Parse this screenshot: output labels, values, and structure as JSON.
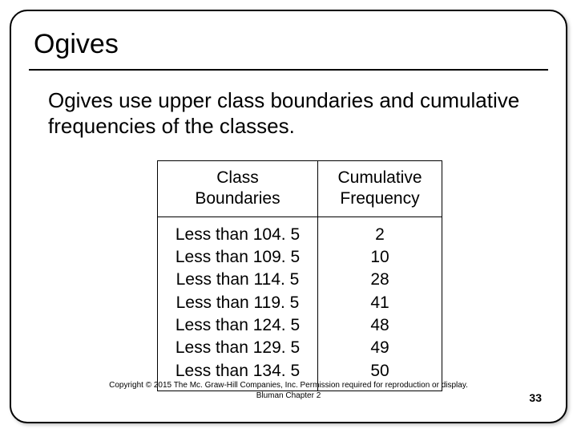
{
  "slide": {
    "title": "Ogives",
    "subtitle": "Ogives use upper class boundaries and cumulative frequencies of the classes."
  },
  "table": {
    "type": "table",
    "columns": [
      "Class Boundaries",
      "Cumulative Frequency"
    ],
    "boundaries": [
      "Less than 104. 5",
      "Less than 109. 5",
      "Less than 114. 5",
      "Less than 119. 5",
      "Less than 124. 5",
      "Less than 129. 5",
      "Less than 134. 5"
    ],
    "cumulative": [
      "2",
      "10",
      "28",
      "41",
      "48",
      "49",
      "50"
    ],
    "border_color": "#000000",
    "font_size": 21,
    "text_color": "#000000"
  },
  "footer": {
    "copyright": "Copyright © 2015 The Mc. Graw-Hill Companies, Inc.  Permission required for reproduction or display.",
    "chapter": "Bluman Chapter 2",
    "page": "33"
  },
  "style": {
    "background_color": "#ffffff",
    "frame_border_color": "#000000",
    "frame_border_radius": 22,
    "title_fontsize": 34,
    "subtitle_fontsize": 26,
    "footer_fontsize": 10
  }
}
